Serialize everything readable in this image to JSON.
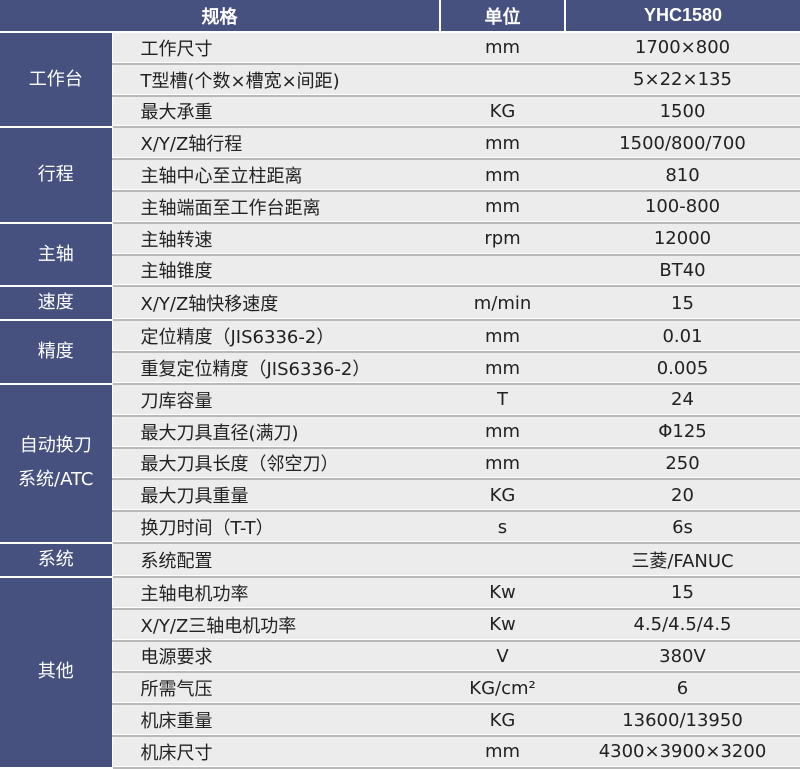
{
  "header": {
    "spec": "规格",
    "unit": "单位",
    "model": "YHC1580"
  },
  "groups": [
    {
      "category": "工作台",
      "rows": [
        [
          "工作尺寸",
          "mm",
          "1700×800"
        ],
        [
          "T型槽(个数×槽宽×间距)",
          "",
          "5×22×135"
        ],
        [
          "最大承重",
          "KG",
          "1500"
        ]
      ]
    },
    {
      "category": "行程",
      "rows": [
        [
          "X/Y/Z轴行程",
          "mm",
          "1500/800/700"
        ],
        [
          "主轴中心至立柱距离",
          "mm",
          "810"
        ],
        [
          "主轴端面至工作台距离",
          "mm",
          "100-800"
        ]
      ]
    },
    {
      "category": "主轴",
      "rows": [
        [
          "主轴转速",
          "rpm",
          "12000"
        ],
        [
          "主轴锥度",
          "",
          "BT40"
        ]
      ]
    },
    {
      "category": "速度",
      "rows": [
        [
          "X/Y/Z轴快移速度",
          "m/min",
          "15"
        ]
      ]
    },
    {
      "category": "精度",
      "rows": [
        [
          "定位精度（JIS6336-2）",
          "mm",
          "0.01"
        ],
        [
          "重复定位精度（JIS6336-2）",
          "mm",
          "0.005"
        ]
      ]
    },
    {
      "category": "自动换刀系统/ATC",
      "rows": [
        [
          "刀库容量",
          "T",
          "24"
        ],
        [
          "最大刀具直径(满刀)",
          "mm",
          "Φ125"
        ],
        [
          "最大刀具长度（邻空刀）",
          "mm",
          "250"
        ],
        [
          "最大刀具重量",
          "KG",
          "20"
        ],
        [
          "换刀时间（T-T）",
          "s",
          "6s"
        ]
      ]
    },
    {
      "category": "系统",
      "rows": [
        [
          "系统配置",
          "",
          "三菱/FANUC"
        ]
      ]
    },
    {
      "category": "其他",
      "rows": [
        [
          "主轴电机功率",
          "Kw",
          "15"
        ],
        [
          "X/Y/Z三轴电机功率",
          "Kw",
          "4.5/4.5/4.5"
        ],
        [
          "电源要求",
          "V",
          "380V"
        ],
        [
          "所需气压",
          "KG/cm²",
          "6"
        ],
        [
          "机床重量",
          "KG",
          "13600/13950"
        ],
        [
          "机床尺寸",
          "mm",
          "4300×3900×3200"
        ]
      ]
    }
  ]
}
